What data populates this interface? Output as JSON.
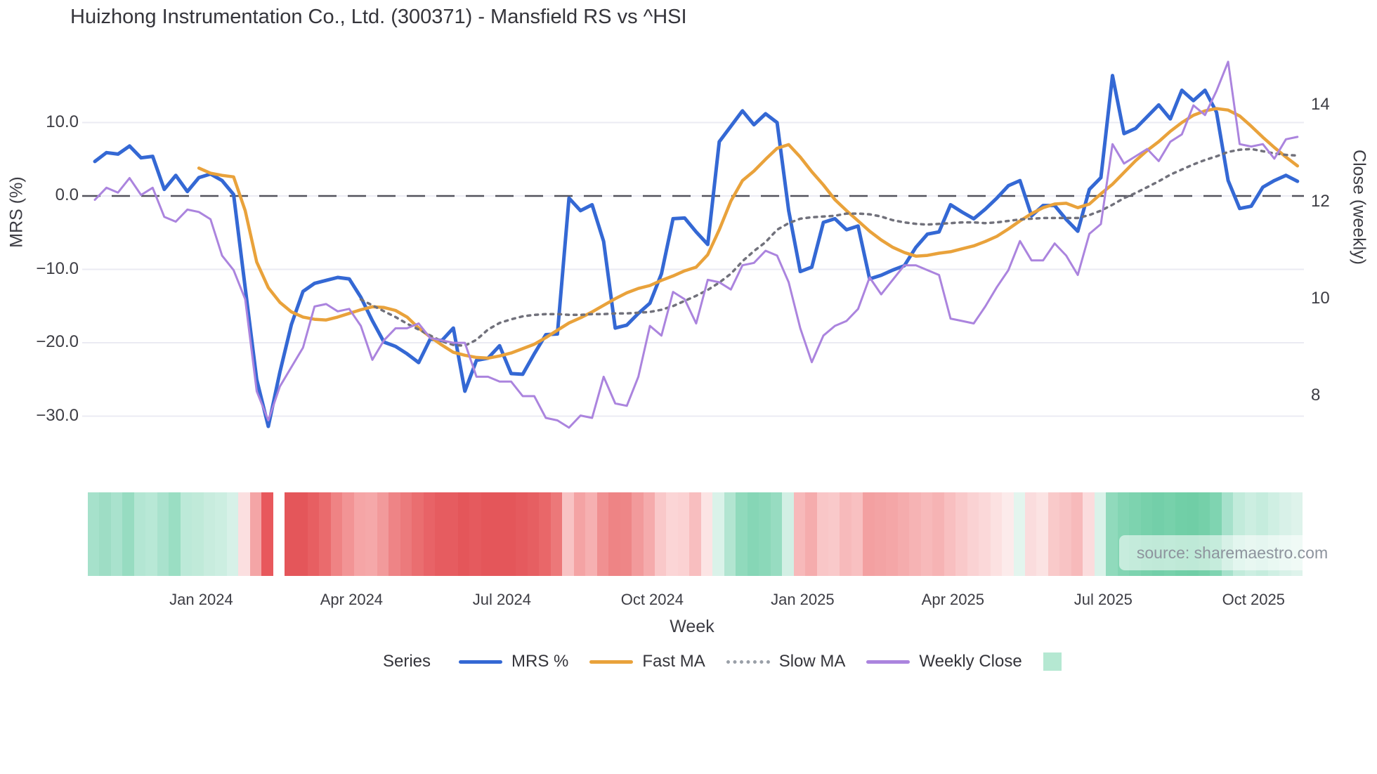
{
  "title": "Huizhong Instrumentation Co., Ltd. (300371) - Mansfield RS vs ^HSI",
  "watermark": "source: sharemaestro.com",
  "axes": {
    "left": {
      "title": "MRS (%)",
      "ticks": [
        {
          "label": "10.0",
          "value": 10
        },
        {
          "label": "0.0",
          "value": 0
        },
        {
          "label": "−10.0",
          "value": -10
        },
        {
          "label": "−20.0",
          "value": -20
        },
        {
          "label": "−30.0",
          "value": -30
        }
      ]
    },
    "right": {
      "title": "Close (weekly)",
      "ticks": [
        {
          "label": "14",
          "value": 14
        },
        {
          "label": "12",
          "value": 12
        },
        {
          "label": "10",
          "value": 10
        },
        {
          "label": "8",
          "value": 8
        }
      ]
    },
    "x": {
      "title": "Week",
      "ticks": [
        {
          "label": "Jan 2024",
          "week": 9.2
        },
        {
          "label": "Apr 2024",
          "week": 22.2
        },
        {
          "label": "Jul 2024",
          "week": 35.2
        },
        {
          "label": "Oct 2024",
          "week": 48.2
        },
        {
          "label": "Jan 2025",
          "week": 61.2
        },
        {
          "label": "Apr 2025",
          "week": 74.2
        },
        {
          "label": "Jul 2025",
          "week": 87.2
        },
        {
          "label": "Oct 2025",
          "week": 100.2
        }
      ]
    }
  },
  "legend": {
    "heading": "Series",
    "items": [
      {
        "label": "MRS %",
        "color": "#3468d4",
        "style": "line"
      },
      {
        "label": "Fast MA",
        "color": "#e9a23b",
        "style": "line"
      },
      {
        "label": "Slow MA",
        "color": "#9aa0a8",
        "style": "dotted"
      },
      {
        "label": "Weekly Close",
        "color": "#ab84de",
        "style": "line"
      },
      {
        "label": "",
        "color": "#b5e8d2",
        "style": "square"
      }
    ]
  },
  "chart_data": {
    "type": "line",
    "title": "Huizhong Instrumentation Co., Ltd. (300371) - Mansfield RS vs ^HSI",
    "xlabel": "Week",
    "ylabel_left": "MRS (%)",
    "ylabel_right": "Close (weekly)",
    "x_unit": "weekly, ~105 weeks from late Oct 2023 to late Oct 2025",
    "ylim_left": [
      -34,
      19
    ],
    "ylim_right": [
      7.2,
      15.0
    ],
    "grid": "horizontal only, left-axis ticks",
    "zero_line": "dashed gray at MRS 0",
    "legend_position": "bottom",
    "series": [
      {
        "name": "MRS %",
        "axis": "left",
        "color": "#3468d4",
        "width": 5,
        "dash": null,
        "values": [
          4.7,
          5.9,
          5.7,
          6.8,
          5.2,
          5.4,
          0.9,
          2.8,
          0.6,
          2.5,
          3.0,
          2.1,
          0.2,
          -12.5,
          -25.0,
          -31.4,
          -24.0,
          -17.5,
          -13.0,
          -11.9,
          -11.5,
          -11.1,
          -11.3,
          -13.8,
          -17.0,
          -19.9,
          -20.5,
          -21.5,
          -22.7,
          -19.5,
          -19.7,
          -18.0,
          -26.6,
          -22.4,
          -22.1,
          -20.4,
          -24.2,
          -24.3,
          -21.5,
          -18.9,
          -18.8,
          -0.3,
          -2.0,
          -1.2,
          -6.2,
          -18.0,
          -17.6,
          -16.0,
          -14.6,
          -10.6,
          -3.1,
          -3.0,
          -4.9,
          -6.6,
          7.4,
          9.5,
          11.6,
          9.7,
          11.2,
          10.0,
          -2.0,
          -10.3,
          -9.7,
          -3.6,
          -3.1,
          -4.6,
          -4.1,
          -11.3,
          -10.8,
          -10.1,
          -9.5,
          -7.0,
          -5.2,
          -4.9,
          -1.2,
          -2.2,
          -3.1,
          -1.8,
          -0.3,
          1.4,
          2.1,
          -2.7,
          -1.3,
          -1.3,
          -3.2,
          -4.8,
          0.9,
          2.5,
          16.4,
          8.5,
          9.2,
          10.8,
          12.4,
          10.5,
          14.4,
          13.0,
          14.4,
          11.4,
          2.1,
          -1.7,
          -1.4,
          1.2,
          2.1,
          2.8,
          2.0
        ]
      },
      {
        "name": "Fast MA",
        "axis": "left",
        "color": "#e9a23b",
        "width": 4.5,
        "dash": null,
        "values": [
          null,
          null,
          null,
          null,
          null,
          null,
          null,
          null,
          null,
          3.8,
          3.1,
          2.8,
          2.6,
          -2.0,
          -9.0,
          -12.5,
          -14.5,
          -15.8,
          -16.5,
          -16.8,
          -16.9,
          -16.5,
          -16.0,
          -15.5,
          -15.1,
          -15.2,
          -15.6,
          -16.5,
          -18.0,
          -19.2,
          -20.3,
          -21.3,
          -21.7,
          -22.0,
          -22.1,
          -21.8,
          -21.4,
          -20.8,
          -20.2,
          -19.3,
          -18.3,
          -17.3,
          -16.6,
          -15.8,
          -14.9,
          -14.0,
          -13.2,
          -12.6,
          -12.2,
          -11.5,
          -10.9,
          -10.2,
          -9.7,
          -8.0,
          -4.6,
          -0.7,
          2.1,
          3.4,
          5.0,
          6.5,
          7.0,
          5.3,
          3.3,
          1.5,
          -0.5,
          -2.0,
          -3.4,
          -4.8,
          -6.0,
          -7.0,
          -7.7,
          -8.2,
          -8.1,
          -7.8,
          -7.6,
          -7.2,
          -6.8,
          -6.2,
          -5.5,
          -4.5,
          -3.4,
          -2.4,
          -1.6,
          -1.1,
          -1.0,
          -1.6,
          -1.1,
          0.3,
          1.6,
          3.2,
          4.8,
          6.2,
          7.4,
          8.8,
          10.0,
          11.0,
          11.6,
          11.9,
          11.7,
          10.9,
          9.5,
          8.0,
          6.6,
          5.3,
          4.1
        ]
      },
      {
        "name": "Slow MA",
        "axis": "left",
        "color": "#71717b",
        "width": 3.5,
        "dash": "4 7",
        "values": [
          null,
          null,
          null,
          null,
          null,
          null,
          null,
          null,
          null,
          null,
          null,
          null,
          null,
          null,
          null,
          null,
          null,
          null,
          null,
          null,
          null,
          null,
          null,
          -14.1,
          -14.9,
          -15.7,
          -16.5,
          -17.4,
          -18.2,
          -19.0,
          -19.8,
          -20.3,
          -20.4,
          -19.6,
          -18.2,
          -17.3,
          -16.8,
          -16.4,
          -16.2,
          -16.1,
          -16.1,
          -16.2,
          -16.2,
          -16.1,
          -16.1,
          -16.0,
          -16.0,
          -15.9,
          -15.8,
          -15.5,
          -15.0,
          -14.3,
          -13.6,
          -12.8,
          -11.8,
          -10.6,
          -8.9,
          -7.5,
          -6.3,
          -4.6,
          -3.7,
          -3.1,
          -2.9,
          -2.8,
          -2.7,
          -2.4,
          -2.4,
          -2.5,
          -2.8,
          -3.3,
          -3.6,
          -3.8,
          -3.9,
          -3.8,
          -3.7,
          -3.6,
          -3.6,
          -3.7,
          -3.6,
          -3.4,
          -3.2,
          -3.1,
          -3.0,
          -3.0,
          -3.0,
          -3.0,
          -2.6,
          -2.0,
          -1.2,
          -0.3,
          0.4,
          1.2,
          2.0,
          2.9,
          3.6,
          4.3,
          4.9,
          5.4,
          6.0,
          6.3,
          6.4,
          6.1,
          5.8,
          5.6,
          5.5
        ]
      },
      {
        "name": "Weekly Close",
        "axis": "right",
        "color": "#ab84de",
        "width": 3,
        "dash": null,
        "values": [
          12.05,
          12.3,
          12.2,
          12.5,
          12.15,
          12.3,
          11.7,
          11.6,
          11.85,
          11.8,
          11.65,
          10.9,
          10.6,
          10.0,
          8.1,
          7.5,
          8.2,
          8.6,
          9.0,
          9.85,
          9.9,
          9.75,
          9.8,
          9.45,
          8.75,
          9.15,
          9.4,
          9.4,
          9.5,
          9.2,
          9.15,
          9.1,
          9.1,
          8.4,
          8.4,
          8.3,
          8.3,
          8.0,
          8.0,
          7.55,
          7.5,
          7.35,
          7.6,
          7.55,
          8.4,
          7.85,
          7.8,
          8.4,
          9.45,
          9.25,
          10.15,
          10.0,
          9.5,
          10.4,
          10.35,
          10.2,
          10.7,
          10.75,
          11.0,
          10.9,
          10.35,
          9.4,
          8.7,
          9.25,
          9.45,
          9.55,
          9.8,
          10.45,
          10.1,
          10.4,
          10.7,
          10.7,
          10.6,
          10.5,
          9.6,
          9.55,
          9.5,
          9.85,
          10.25,
          10.6,
          11.2,
          10.8,
          10.8,
          11.15,
          10.9,
          10.5,
          11.35,
          11.55,
          13.2,
          12.8,
          12.95,
          13.1,
          12.85,
          13.25,
          13.4,
          14.0,
          13.8,
          14.3,
          14.9,
          13.2,
          13.15,
          13.2,
          12.9,
          13.3,
          13.35
        ]
      }
    ],
    "heatmap_strip": {
      "description": "weekly sentiment strip below chart, green=positive red=negative",
      "colors": [
        "#a6e1cb",
        "#9eddc5",
        "#a9e2cd",
        "#97dcc1",
        "#b3e6d3",
        "#b8e8d6",
        "#a9e2cd",
        "#9adec3",
        "#bce9d8",
        "#c0ead9",
        "#c8ecde",
        "#cceee1",
        "#d7f1e8",
        "#fbdfe0",
        "#f4a5a6",
        "#e8585c",
        "#ffffff",
        "#e4565a",
        "#e4565a",
        "#e75f62",
        "#ea6b6d",
        "#ef8384",
        "#f29495",
        "#f5a5a6",
        "#f5a8a9",
        "#f29a9b",
        "#ee8486",
        "#ec7a7c",
        "#ea6e70",
        "#e86367",
        "#e65c60",
        "#e65c60",
        "#e4565a",
        "#e55a5e",
        "#e4565a",
        "#e4565a",
        "#e4565a",
        "#e55a5e",
        "#e65f62",
        "#e96769",
        "#ec7879",
        "#f8c3c4",
        "#f4a3a4",
        "#f6b0b1",
        "#f09091",
        "#ee8485",
        "#ee8687",
        "#f29a9b",
        "#f5abac",
        "#f9c8c9",
        "#fbd5d6",
        "#fbd2d3",
        "#f8bebf",
        "#fce4e4",
        "#daf2e9",
        "#b2e5d1",
        "#90dabc",
        "#86d6b6",
        "#8bd8b9",
        "#97dcc1",
        "#d2efe4",
        "#f7b9ba",
        "#f5acad",
        "#f9c6c7",
        "#f9c9ca",
        "#f7babb",
        "#f8c0c1",
        "#f3a0a1",
        "#f3a3a4",
        "#f4a6a7",
        "#f5acad",
        "#f6b3b4",
        "#f7b9ba",
        "#f6b3b4",
        "#f8bfc0",
        "#f9c9ca",
        "#fad2d3",
        "#fbd8d9",
        "#fce1e1",
        "#fcebeb",
        "#e3f5ee",
        "#fadcdd",
        "#fbe3e3",
        "#f9caca",
        "#f8c3c4",
        "#f7babb",
        "#fbdcdd",
        "#daf2e9",
        "#90dabc",
        "#83d5b3",
        "#7dd3af",
        "#77d1ab",
        "#73cfa9",
        "#77d1ab",
        "#71cfa7",
        "#70cea6",
        "#75d0a9",
        "#7fd4b1",
        "#a6e1cb",
        "#c2ebdb",
        "#cceee1",
        "#c5ecdd",
        "#cfefe3",
        "#d8f1e8",
        "#def3eb"
      ]
    },
    "colors": {
      "mrs": "#3468d4",
      "fast_ma": "#e9a23b",
      "slow_ma": "#71717b",
      "weekly_close": "#ab84de",
      "zero_line": "#52525c",
      "gridline": "#ebebf3",
      "heat_green": "#70cea6",
      "heat_red": "#e4565a"
    }
  }
}
